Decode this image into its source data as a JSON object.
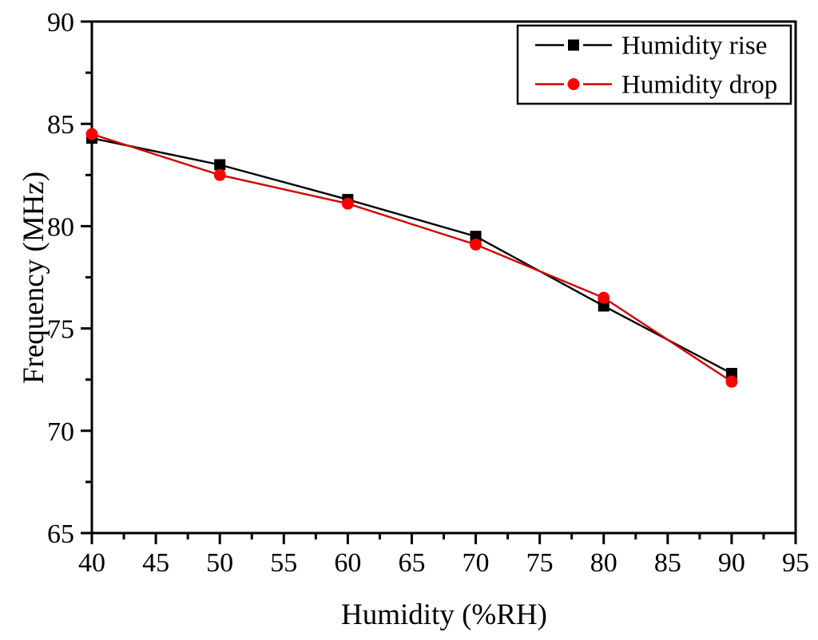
{
  "chart_data": {
    "type": "line",
    "title": "",
    "xlabel": "Humidity (%RH)",
    "ylabel": "Frequency (MHz)",
    "x": [
      40,
      50,
      60,
      70,
      80,
      90
    ],
    "series": [
      {
        "name": "Humidity rise",
        "marker": "square",
        "line_color": "#000000",
        "marker_color": "#000000",
        "values": [
          84.3,
          83.0,
          81.3,
          79.5,
          76.1,
          72.8
        ]
      },
      {
        "name": "Humidity drop",
        "marker": "circle",
        "line_color": "#d40000",
        "marker_color": "#ff0000",
        "values": [
          84.5,
          82.5,
          81.1,
          79.1,
          76.5,
          72.4
        ]
      }
    ],
    "xlim": [
      40,
      95
    ],
    "ylim": [
      65,
      90
    ],
    "x_major_ticks": [
      40,
      45,
      50,
      55,
      60,
      65,
      70,
      75,
      80,
      85,
      90,
      95
    ],
    "y_major_ticks": [
      65,
      70,
      75,
      80,
      85,
      90
    ],
    "minor_tick_step": 2.5,
    "tick_direction": "out",
    "grid": false,
    "legend_position": "top-right",
    "background_color": "#ffffff",
    "axis_color": "#000000"
  }
}
